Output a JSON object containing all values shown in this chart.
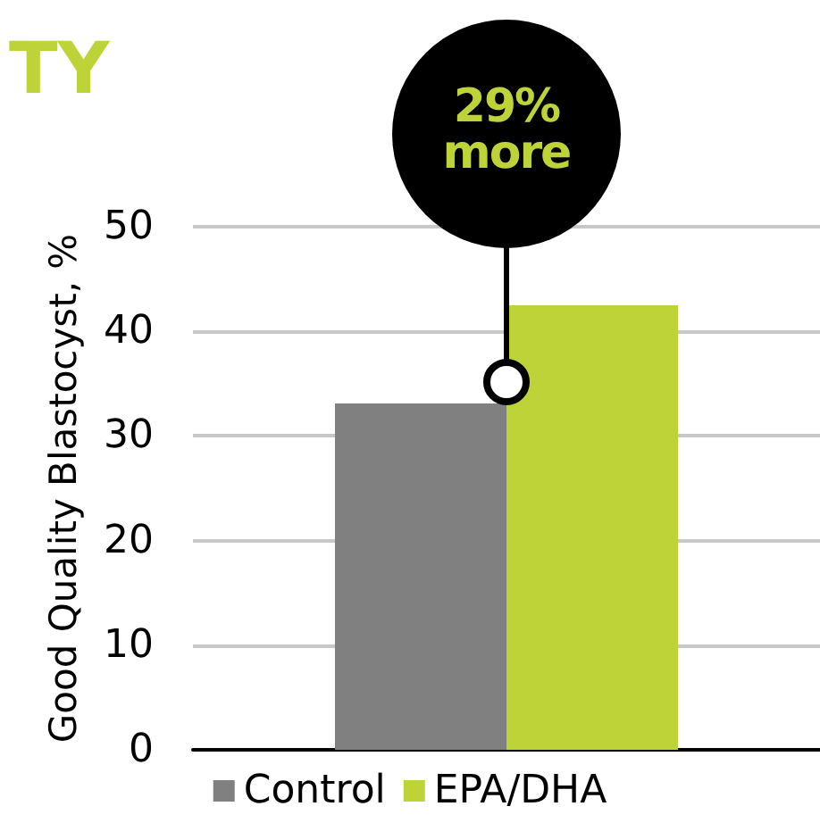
{
  "chart_data": {
    "type": "bar",
    "title": "TY",
    "ylabel": "Good Quality Blastocyst, %",
    "categories": [
      null
    ],
    "series": [
      {
        "name": "Control",
        "color": "#808080",
        "values": [
          33.1
        ]
      },
      {
        "name": "EPA/DHA",
        "color": "#bed337",
        "values": [
          42.5
        ]
      }
    ],
    "ylim": [
      0,
      50
    ],
    "yticks": [
      0,
      10,
      20,
      30,
      40,
      50
    ],
    "grid": "y",
    "legend": "bottom",
    "annotations": [
      "29% more"
    ]
  }
}
